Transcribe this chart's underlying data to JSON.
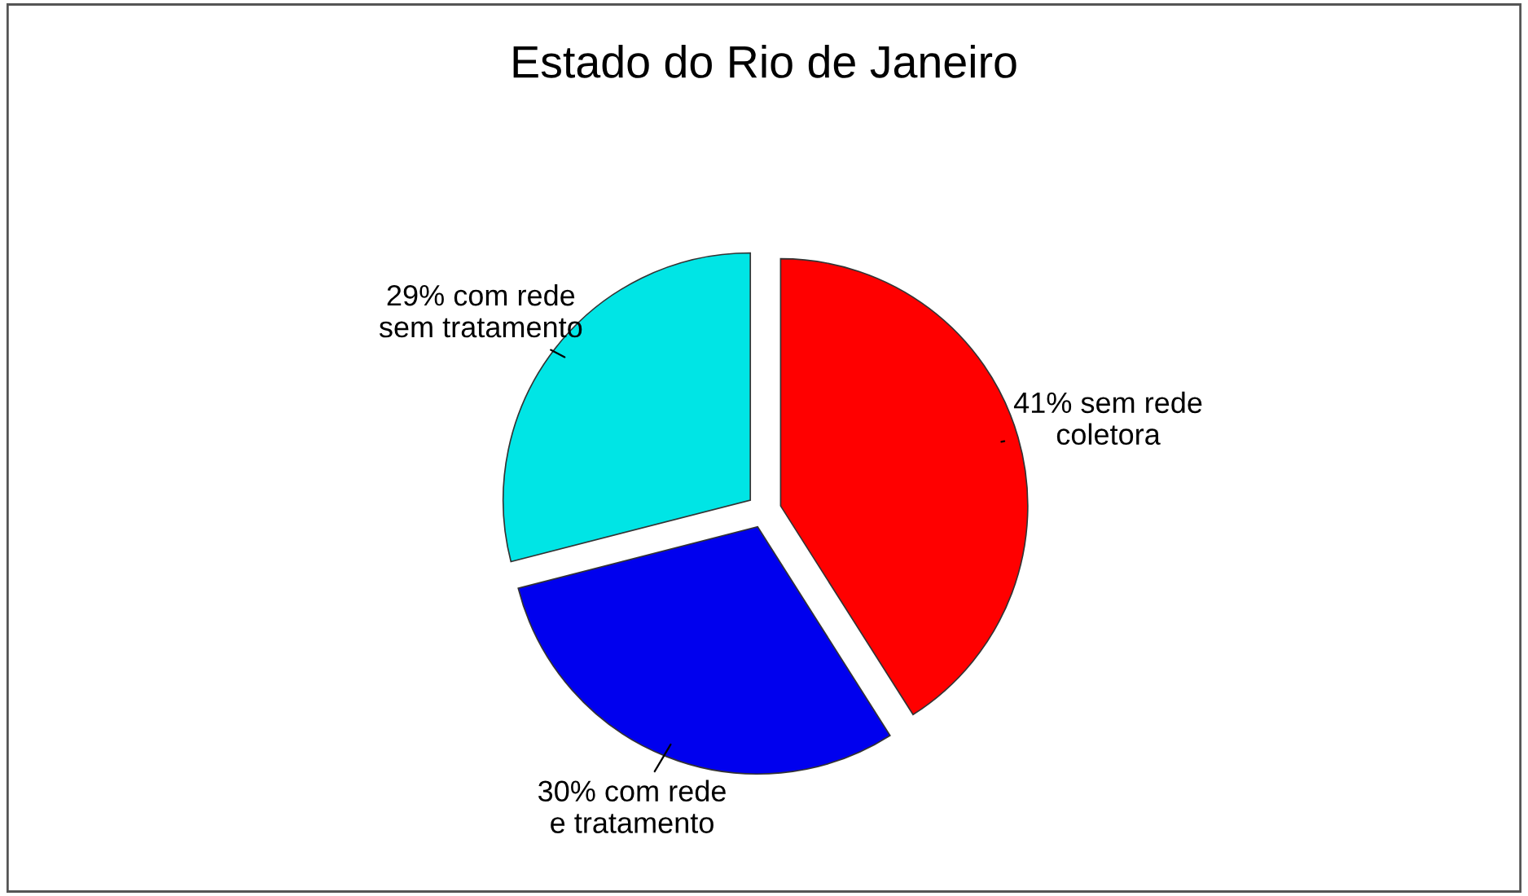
{
  "chart_data": {
    "type": "pie",
    "title": "Estado do Rio de Janeiro",
    "categories": [
      "41% sem rede\ncoletora",
      "30% com rede\ne tratamento",
      "29% com rede\nsem tratamento"
    ],
    "values": [
      41,
      30,
      29
    ],
    "colors": [
      "#ff0000",
      "#0000ee",
      "#00e5e5"
    ]
  }
}
